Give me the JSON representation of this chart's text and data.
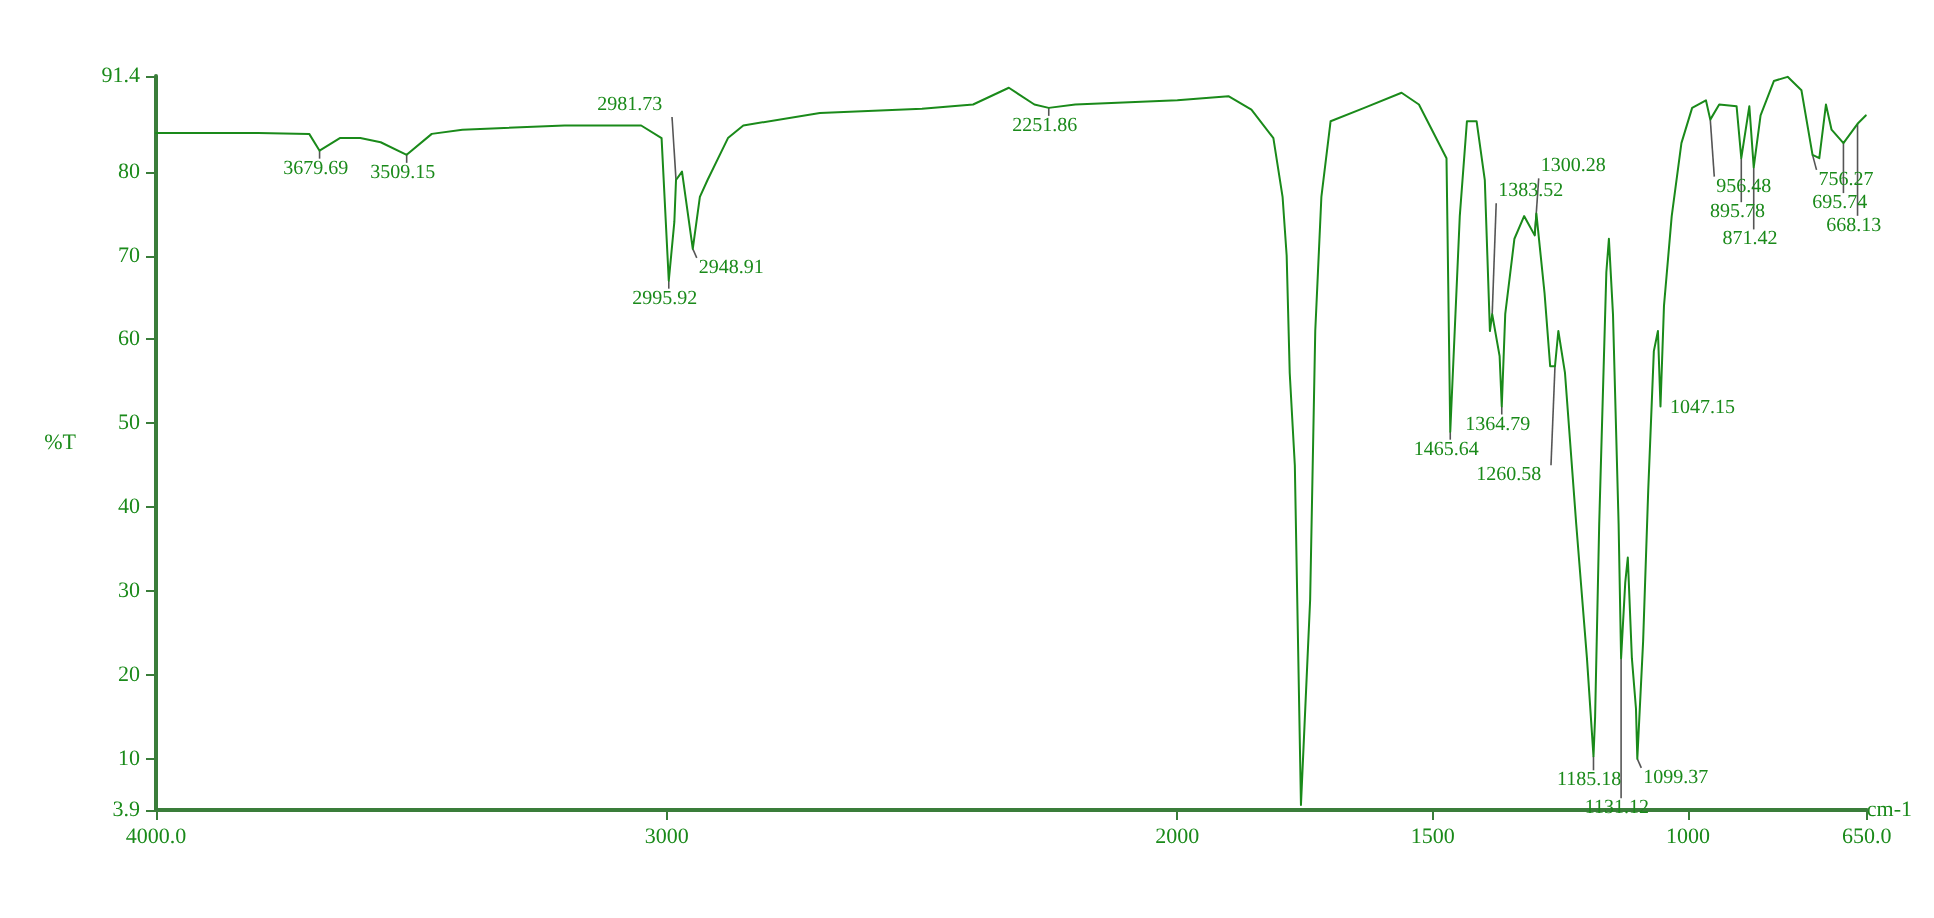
{
  "chart_data": {
    "type": "line",
    "xlabel": "cm-1",
    "ylabel": "%T",
    "xlim": [
      4000,
      650
    ],
    "xticks": [
      {
        "value": 4000,
        "label": "4000.0"
      },
      3000,
      2000,
      1500,
      1000,
      {
        "value": 650,
        "label": "650.0"
      }
    ],
    "ylim": [
      3.9,
      91.4
    ],
    "yticks": [
      3.9,
      10,
      20,
      30,
      40,
      50,
      60,
      70,
      80,
      91.4
    ],
    "marker": "none",
    "line_style": "solid",
    "x": [
      4000,
      3800,
      3700,
      3679.69,
      3640,
      3600,
      3560,
      3509.15,
      3460,
      3400,
      3200,
      3050,
      3010,
      2995.92,
      2985,
      2981.73,
      2970,
      2948.91,
      2935,
      2920,
      2880,
      2850,
      2700,
      2500,
      2400,
      2330,
      2280,
      2251.86,
      2200,
      2000,
      1900,
      1855,
      1812,
      1794,
      1786,
      1780,
      1770,
      1758,
      1740,
      1730,
      1718,
      1700,
      1634,
      1561,
      1527,
      1473,
      1465.64,
      1447,
      1433,
      1414,
      1398,
      1388,
      1383.52,
      1369,
      1364.79,
      1358,
      1340,
      1321,
      1300.28,
      1297,
      1281,
      1270,
      1260.58,
      1254,
      1241,
      1219,
      1198,
      1185.18,
      1182,
      1174,
      1160,
      1155,
      1147,
      1136,
      1131.12,
      1123,
      1118,
      1110,
      1102,
      1099.37,
      1088,
      1078,
      1067,
      1059,
      1054,
      1047.15,
      1032,
      1013,
      992,
      965,
      956.48,
      939,
      905,
      895.78,
      880,
      871.42,
      858,
      832,
      805,
      778,
      756.27,
      743,
      730,
      719,
      695.74,
      668.13,
      652
    ],
    "series": [
      {
        "color": "#1a8a1a",
        "values": [
          84.6,
          84.6,
          84.5,
          82.5,
          84,
          84,
          83.5,
          82,
          84.5,
          85,
          85.5,
          85.5,
          84,
          67,
          74,
          79,
          80,
          70.8,
          77,
          79,
          84,
          85.5,
          87,
          87.5,
          88,
          90,
          88,
          87.6,
          88,
          88.5,
          89,
          87.4,
          84,
          77,
          70,
          56,
          45,
          4.5,
          29,
          61,
          77,
          86,
          87.6,
          89.4,
          88,
          81.6,
          49,
          74.7,
          86,
          86,
          79,
          61,
          63,
          58,
          52,
          63,
          72,
          74.7,
          72.4,
          75,
          65.5,
          56.8,
          56.8,
          61,
          56,
          38,
          22,
          10.3,
          15,
          38,
          68,
          72,
          63,
          38,
          22,
          31,
          34,
          22,
          16,
          10,
          24,
          42,
          58.6,
          61,
          52,
          64,
          74.7,
          83.4,
          87.6,
          88.5,
          86.2,
          88,
          87.8,
          81.6,
          87.8,
          80.5,
          86.7,
          90.8,
          91.3,
          89.7,
          82,
          81.6,
          88,
          85,
          83.4,
          85.7,
          86.7
        ]
      }
    ],
    "annotations": [
      {
        "text": "3679.69",
        "x": 3679.69,
        "y": 82.5
      },
      {
        "text": "3509.15",
        "x": 3509.15,
        "y": 82
      },
      {
        "text": "2981.73",
        "x": 2981.73,
        "y": 79
      },
      {
        "text": "2948.91",
        "x": 2948.91,
        "y": 70.8
      },
      {
        "text": "2995.92",
        "x": 2995.92,
        "y": 67
      },
      {
        "text": "2251.86",
        "x": 2251.86,
        "y": 87.6
      },
      {
        "text": "1465.64",
        "x": 1465.64,
        "y": 49
      },
      {
        "text": "1383.52",
        "x": 1383.52,
        "y": 63
      },
      {
        "text": "1364.79",
        "x": 1364.79,
        "y": 52
      },
      {
        "text": "1300.28",
        "x": 1300.28,
        "y": 72.4
      },
      {
        "text": "1260.58",
        "x": 1260.58,
        "y": 56.8
      },
      {
        "text": "1185.18",
        "x": 1185.18,
        "y": 10.3
      },
      {
        "text": "1131.12",
        "x": 1131.12,
        "y": 22
      },
      {
        "text": "1099.37",
        "x": 1099.37,
        "y": 10
      },
      {
        "text": "1047.15",
        "x": 1047.15,
        "y": 52
      },
      {
        "text": "956.48",
        "x": 956.48,
        "y": 86.2
      },
      {
        "text": "895.78",
        "x": 895.78,
        "y": 81.6
      },
      {
        "text": "871.42",
        "x": 871.42,
        "y": 80.5
      },
      {
        "text": "756.27",
        "x": 756.27,
        "y": 82
      },
      {
        "text": "695.74",
        "x": 695.74,
        "y": 83.4
      },
      {
        "text": "668.13",
        "x": 668.13,
        "y": 85.7
      }
    ]
  }
}
